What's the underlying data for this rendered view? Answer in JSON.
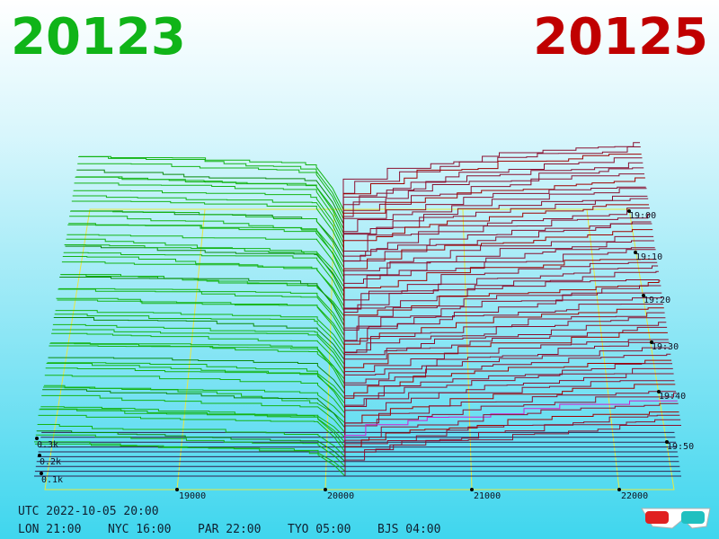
{
  "header": {
    "bid_price": "20123",
    "ask_price": "20125"
  },
  "price_axis": {
    "ticks": [
      "19000",
      "20000",
      "21000",
      "22000"
    ]
  },
  "volume_axis": {
    "ticks": [
      "0.1k",
      "0.2k",
      "0.3k"
    ]
  },
  "time_axis": {
    "ticks": [
      "19:00",
      "19:10",
      "19:20",
      "19:30",
      "19:40",
      "19:50"
    ]
  },
  "clock": {
    "utc": "UTC 2022-10-05 20:00",
    "cities": [
      "LON 21:00",
      "NYC 16:00",
      "PAR 22:00",
      "TYO 05:00",
      "BJS 04:00"
    ]
  }
}
